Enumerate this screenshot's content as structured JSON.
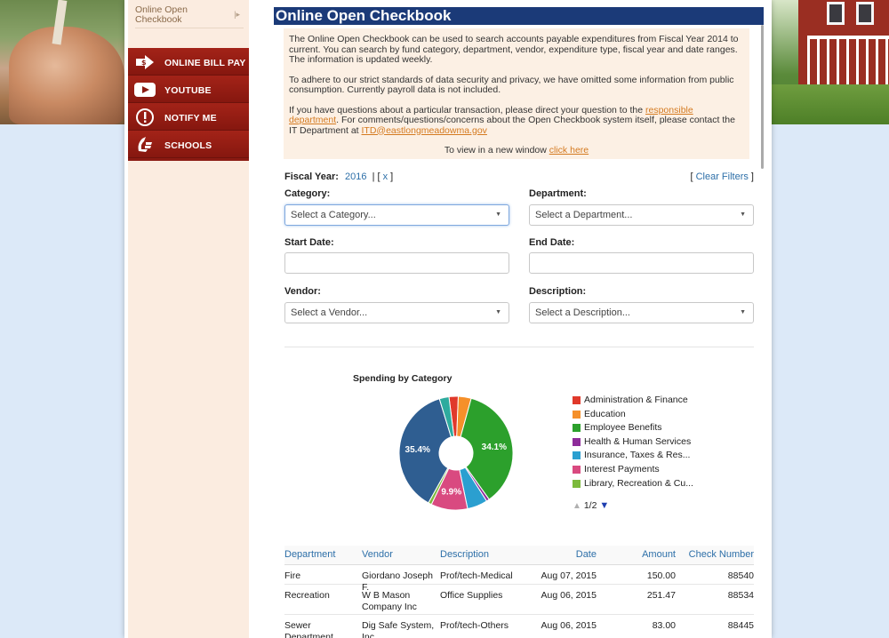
{
  "sidebar": {
    "top_link": "Online Open Checkbook",
    "menu": [
      {
        "label": "ONLINE BILL PAY",
        "icon": "bill-pay-icon"
      },
      {
        "label": "YOUTUBE",
        "icon": "youtube-icon"
      },
      {
        "label": "NOTIFY ME",
        "icon": "notify-icon"
      },
      {
        "label": "SCHOOLS",
        "icon": "schools-icon"
      }
    ]
  },
  "main": {
    "title": "Online Open Checkbook",
    "info": {
      "p1": "The Online Open Checkbook can be used to search accounts payable expenditures from Fiscal Year 2014 to current. You can search by fund category, department, vendor, expenditure type, fiscal year and date ranges. The information is updated weekly.",
      "p2": "To adhere to our strict standards of data security and privacy, we have omitted some information from public consumption. Currently payroll data is not included.",
      "p3_a": "If you have questions about a particular transaction, please direct your question to the ",
      "p3_link": "responsible department",
      "p3_b": ". For comments/questions/concerns about the Open Checkbook system itself, please contact the IT Department at ",
      "p3_email": "ITD@eastlongmeadowma.gov",
      "p4_a": "To view in a new window ",
      "p4_link": "click here"
    },
    "filters": {
      "fiscal_year_label": "Fiscal Year:",
      "fiscal_year_value": "2016",
      "remove_label": "x",
      "clear_label": "Clear Filters",
      "category_label": "Category:",
      "category_placeholder": "Select a Category...",
      "department_label": "Department:",
      "department_placeholder": "Select a Department...",
      "start_date_label": "Start Date:",
      "end_date_label": "End Date:",
      "vendor_label": "Vendor:",
      "vendor_placeholder": "Select a Vendor...",
      "description_label": "Description:",
      "description_placeholder": "Select a Description..."
    },
    "pager": "1/2",
    "table": {
      "headers": [
        "Department",
        "Vendor",
        "Description",
        "Date",
        "Amount",
        "Check Number"
      ],
      "rows": [
        {
          "department": "Fire",
          "vendor": "Giordano Joseph F.",
          "description": "Prof/tech-Medical",
          "date": "Aug 07, 2015",
          "amount": "150.00",
          "check": "88540"
        },
        {
          "department": "Recreation",
          "vendor": "W B Mason Company Inc",
          "description": "Office Supplies",
          "date": "Aug 06, 2015",
          "amount": "251.47",
          "check": "88534"
        },
        {
          "department": "Sewer Department",
          "vendor": "Dig Safe System, Inc",
          "description": "Prof/tech-Others",
          "date": "Aug 06, 2015",
          "amount": "83.00",
          "check": "88445"
        }
      ]
    }
  },
  "chart_data": {
    "type": "pie",
    "title": "Spending by Category",
    "donut": true,
    "legend_position": "right",
    "slices": [
      {
        "label": "Administration & Finance",
        "value": 2.5,
        "color": "#e0392b"
      },
      {
        "label": "Education",
        "value": 3.5,
        "color": "#f5902a"
      },
      {
        "label": "Employee Benefits",
        "value": 34.1,
        "color": "#2ca02c",
        "data_label": "34.1%"
      },
      {
        "label": "Health & Human Services",
        "value": 0.8,
        "color": "#8e2c9a"
      },
      {
        "label": "Insurance, Taxes & Res...",
        "value": 5.5,
        "color": "#2b9fd0"
      },
      {
        "label": "Interest Payments",
        "value": 9.9,
        "color": "#d94a80",
        "data_label": "9.9%"
      },
      {
        "label": "Library, Recreation & Cu...",
        "value": 0.9,
        "color": "#7cba3c"
      },
      {
        "label": "",
        "value": 35.4,
        "color": "#2f5e91",
        "data_label": "35.4%"
      },
      {
        "label": "",
        "value": 2.6,
        "color": "#2eab9e"
      }
    ]
  }
}
